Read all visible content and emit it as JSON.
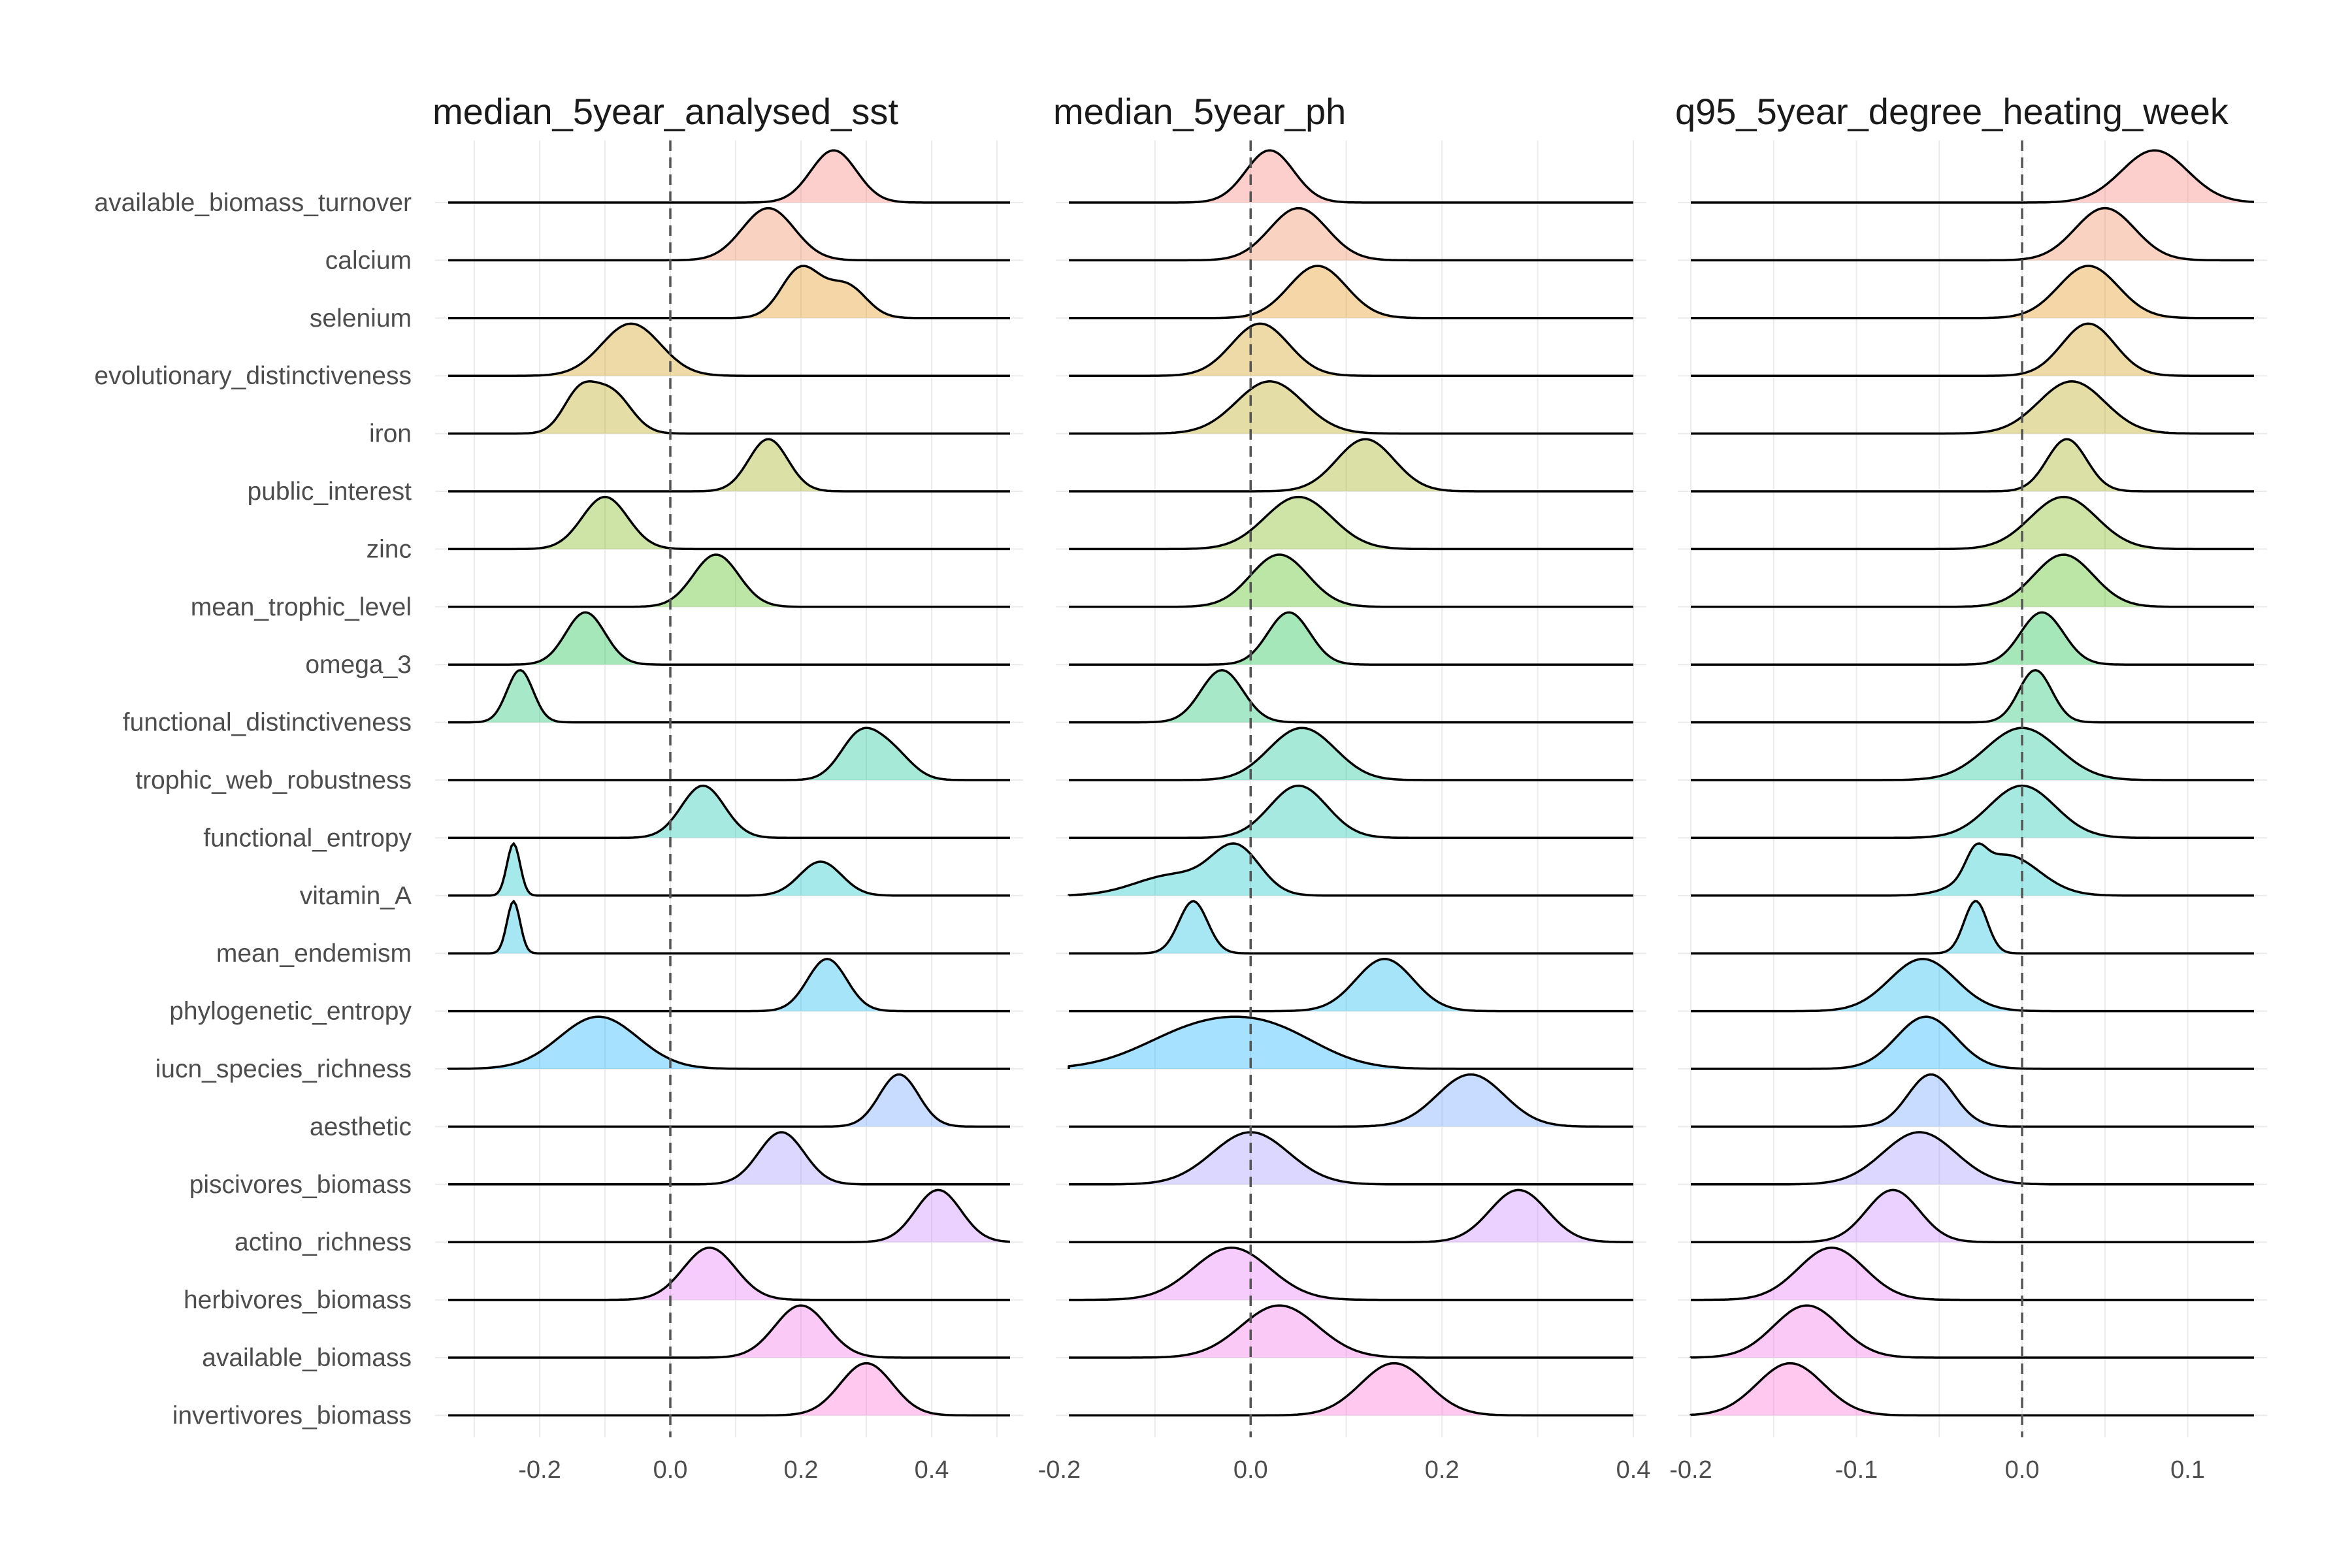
{
  "chart_data": {
    "type": "ridgeline",
    "rows": [
      "available_biomass_turnover",
      "calcium",
      "selenium",
      "evolutionary_distinctiveness",
      "iron",
      "public_interest",
      "zinc",
      "mean_trophic_level",
      "omega_3",
      "functional_distinctiveness",
      "trophic_web_robustness",
      "functional_entropy",
      "vitamin_A",
      "mean_endemism",
      "phylogenetic_entropy",
      "iucn_species_richness",
      "aesthetic",
      "piscivores_biomass",
      "actino_richness",
      "herbivores_biomass",
      "available_biomass",
      "invertivores_biomass"
    ],
    "row_colors": [
      "#F8766D",
      "#F17F4C",
      "#E28A00",
      "#CD9600",
      "#B49E00",
      "#97A600",
      "#72AF00",
      "#3EB600",
      "#00BA38",
      "#00BD5E",
      "#00C08B",
      "#00C1A9",
      "#00BFC4",
      "#00BADE",
      "#00B2F0",
      "#00A8FF",
      "#619CFF",
      "#9C8DFF",
      "#C77CFF",
      "#E26EF7",
      "#F365E6",
      "#FE61D0"
    ],
    "reference_line_x": 0,
    "panels": [
      {
        "title": "median_5year_analysed_sst",
        "xlim": [
          -0.34,
          0.52
        ],
        "ticks": [
          -0.2,
          0.0,
          0.2,
          0.4
        ],
        "tick_labels": [
          "-0.2",
          "0.0",
          "0.2",
          "0.4"
        ],
        "series": [
          {
            "name": "available_biomass_turnover",
            "peaks": [
              {
                "mu": 0.25,
                "sd": 0.035,
                "w": 1
              }
            ]
          },
          {
            "name": "calcium",
            "peaks": [
              {
                "mu": 0.15,
                "sd": 0.04,
                "w": 1
              }
            ]
          },
          {
            "name": "selenium",
            "peaks": [
              {
                "mu": 0.2,
                "sd": 0.03,
                "w": 0.7
              },
              {
                "mu": 0.27,
                "sd": 0.03,
                "w": 0.45
              }
            ]
          },
          {
            "name": "evolutionary_distinctiveness",
            "peaks": [
              {
                "mu": -0.06,
                "sd": 0.045,
                "w": 1
              }
            ]
          },
          {
            "name": "iron",
            "peaks": [
              {
                "mu": -0.14,
                "sd": 0.025,
                "w": 0.7
              },
              {
                "mu": -0.09,
                "sd": 0.03,
                "w": 0.75
              }
            ]
          },
          {
            "name": "public_interest",
            "peaks": [
              {
                "mu": 0.15,
                "sd": 0.03,
                "w": 1
              }
            ]
          },
          {
            "name": "zinc",
            "peaks": [
              {
                "mu": -0.1,
                "sd": 0.035,
                "w": 1
              }
            ]
          },
          {
            "name": "mean_trophic_level",
            "peaks": [
              {
                "mu": 0.07,
                "sd": 0.035,
                "w": 1
              }
            ]
          },
          {
            "name": "omega_3",
            "peaks": [
              {
                "mu": -0.13,
                "sd": 0.03,
                "w": 1
              }
            ]
          },
          {
            "name": "functional_distinctiveness",
            "peaks": [
              {
                "mu": -0.23,
                "sd": 0.02,
                "w": 1
              }
            ]
          },
          {
            "name": "trophic_web_robustness",
            "peaks": [
              {
                "mu": 0.29,
                "sd": 0.03,
                "w": 0.85
              },
              {
                "mu": 0.34,
                "sd": 0.03,
                "w": 0.5
              }
            ]
          },
          {
            "name": "functional_entropy",
            "peaks": [
              {
                "mu": 0.05,
                "sd": 0.033,
                "w": 1
              }
            ]
          },
          {
            "name": "vitamin_A",
            "peaks": [
              {
                "mu": -0.24,
                "sd": 0.01,
                "w": 1
              },
              {
                "mu": 0.23,
                "sd": 0.032,
                "w": 0.65
              }
            ]
          },
          {
            "name": "mean_endemism",
            "peaks": [
              {
                "mu": -0.24,
                "sd": 0.01,
                "w": 1
              }
            ]
          },
          {
            "name": "phylogenetic_entropy",
            "peaks": [
              {
                "mu": 0.24,
                "sd": 0.03,
                "w": 1
              }
            ]
          },
          {
            "name": "iucn_species_richness",
            "peaks": [
              {
                "mu": -0.11,
                "sd": 0.06,
                "w": 1
              }
            ]
          },
          {
            "name": "aesthetic",
            "peaks": [
              {
                "mu": 0.35,
                "sd": 0.03,
                "w": 1
              }
            ]
          },
          {
            "name": "piscivores_biomass",
            "peaks": [
              {
                "mu": 0.17,
                "sd": 0.035,
                "w": 1
              }
            ]
          },
          {
            "name": "actino_richness",
            "peaks": [
              {
                "mu": 0.41,
                "sd": 0.035,
                "w": 1
              }
            ]
          },
          {
            "name": "herbivores_biomass",
            "peaks": [
              {
                "mu": 0.06,
                "sd": 0.04,
                "w": 1
              }
            ]
          },
          {
            "name": "available_biomass",
            "peaks": [
              {
                "mu": 0.2,
                "sd": 0.04,
                "w": 1
              }
            ]
          },
          {
            "name": "invertivores_biomass",
            "peaks": [
              {
                "mu": 0.3,
                "sd": 0.04,
                "w": 1
              }
            ]
          }
        ]
      },
      {
        "title": "median_5year_ph",
        "xlim": [
          -0.19,
          0.4
        ],
        "ticks": [
          -0.2,
          0.0,
          0.2,
          0.4
        ],
        "tick_labels": [
          "-0.2",
          "0.0",
          "0.2",
          "0.4"
        ],
        "series": [
          {
            "name": "available_biomass_turnover",
            "peaks": [
              {
                "mu": 0.02,
                "sd": 0.025,
                "w": 1
              }
            ]
          },
          {
            "name": "calcium",
            "peaks": [
              {
                "mu": 0.05,
                "sd": 0.03,
                "w": 1
              }
            ]
          },
          {
            "name": "selenium",
            "peaks": [
              {
                "mu": 0.07,
                "sd": 0.03,
                "w": 1
              }
            ]
          },
          {
            "name": "evolutionary_distinctiveness",
            "peaks": [
              {
                "mu": 0.01,
                "sd": 0.03,
                "w": 1
              }
            ]
          },
          {
            "name": "iron",
            "peaks": [
              {
                "mu": 0.02,
                "sd": 0.035,
                "w": 1
              }
            ]
          },
          {
            "name": "public_interest",
            "peaks": [
              {
                "mu": 0.12,
                "sd": 0.03,
                "w": 1
              }
            ]
          },
          {
            "name": "zinc",
            "peaks": [
              {
                "mu": 0.05,
                "sd": 0.035,
                "w": 1
              }
            ]
          },
          {
            "name": "mean_trophic_level",
            "peaks": [
              {
                "mu": 0.03,
                "sd": 0.03,
                "w": 1
              }
            ]
          },
          {
            "name": "omega_3",
            "peaks": [
              {
                "mu": 0.04,
                "sd": 0.022,
                "w": 1
              }
            ]
          },
          {
            "name": "functional_distinctiveness",
            "peaks": [
              {
                "mu": -0.03,
                "sd": 0.022,
                "w": 1
              }
            ]
          },
          {
            "name": "trophic_web_robustness",
            "peaks": [
              {
                "mu": 0.04,
                "sd": 0.03,
                "w": 0.8
              },
              {
                "mu": 0.07,
                "sd": 0.03,
                "w": 0.7
              }
            ]
          },
          {
            "name": "functional_entropy",
            "peaks": [
              {
                "mu": 0.05,
                "sd": 0.03,
                "w": 1
              }
            ]
          },
          {
            "name": "vitamin_A",
            "peaks": [
              {
                "mu": -0.015,
                "sd": 0.025,
                "w": 0.9
              },
              {
                "mu": -0.08,
                "sd": 0.04,
                "w": 0.4
              }
            ]
          },
          {
            "name": "mean_endemism",
            "peaks": [
              {
                "mu": -0.06,
                "sd": 0.015,
                "w": 1
              }
            ]
          },
          {
            "name": "phylogenetic_entropy",
            "peaks": [
              {
                "mu": 0.14,
                "sd": 0.03,
                "w": 1
              }
            ]
          },
          {
            "name": "iucn_species_richness",
            "peaks": [
              {
                "mu": -0.05,
                "sd": 0.06,
                "w": 0.9
              },
              {
                "mu": 0.03,
                "sd": 0.05,
                "w": 0.6
              }
            ]
          },
          {
            "name": "aesthetic",
            "peaks": [
              {
                "mu": 0.23,
                "sd": 0.035,
                "w": 1
              }
            ]
          },
          {
            "name": "piscivores_biomass",
            "peaks": [
              {
                "mu": 0.0,
                "sd": 0.04,
                "w": 1
              }
            ]
          },
          {
            "name": "actino_richness",
            "peaks": [
              {
                "mu": 0.28,
                "sd": 0.03,
                "w": 1
              }
            ]
          },
          {
            "name": "herbivores_biomass",
            "peaks": [
              {
                "mu": -0.02,
                "sd": 0.04,
                "w": 1
              }
            ]
          },
          {
            "name": "available_biomass",
            "peaks": [
              {
                "mu": 0.03,
                "sd": 0.04,
                "w": 1
              }
            ]
          },
          {
            "name": "invertivores_biomass",
            "peaks": [
              {
                "mu": 0.15,
                "sd": 0.035,
                "w": 1
              }
            ]
          }
        ]
      },
      {
        "title": "q95_5year_degree_heating_week",
        "xlim": [
          -0.2,
          0.14
        ],
        "ticks": [
          -0.2,
          -0.1,
          0.0,
          0.1
        ],
        "tick_labels": [
          "-0.2",
          "-0.1",
          "0.0",
          "0.1"
        ],
        "series": [
          {
            "name": "available_biomass_turnover",
            "peaks": [
              {
                "mu": 0.08,
                "sd": 0.02,
                "w": 1
              }
            ]
          },
          {
            "name": "calcium",
            "peaks": [
              {
                "mu": 0.05,
                "sd": 0.018,
                "w": 1
              }
            ]
          },
          {
            "name": "selenium",
            "peaks": [
              {
                "mu": 0.04,
                "sd": 0.018,
                "w": 1
              }
            ]
          },
          {
            "name": "evolutionary_distinctiveness",
            "peaks": [
              {
                "mu": 0.04,
                "sd": 0.016,
                "w": 1
              }
            ]
          },
          {
            "name": "iron",
            "peaks": [
              {
                "mu": 0.03,
                "sd": 0.02,
                "w": 1
              }
            ]
          },
          {
            "name": "public_interest",
            "peaks": [
              {
                "mu": 0.027,
                "sd": 0.012,
                "w": 1
              }
            ]
          },
          {
            "name": "zinc",
            "peaks": [
              {
                "mu": 0.025,
                "sd": 0.02,
                "w": 1
              }
            ]
          },
          {
            "name": "mean_trophic_level",
            "peaks": [
              {
                "mu": 0.025,
                "sd": 0.018,
                "w": 1
              }
            ]
          },
          {
            "name": "omega_3",
            "peaks": [
              {
                "mu": 0.012,
                "sd": 0.013,
                "w": 1
              }
            ]
          },
          {
            "name": "functional_distinctiveness",
            "peaks": [
              {
                "mu": 0.008,
                "sd": 0.01,
                "w": 1
              }
            ]
          },
          {
            "name": "trophic_web_robustness",
            "peaks": [
              {
                "mu": 0.0,
                "sd": 0.022,
                "w": 1
              }
            ]
          },
          {
            "name": "functional_entropy",
            "peaks": [
              {
                "mu": 0.0,
                "sd": 0.02,
                "w": 1
              }
            ]
          },
          {
            "name": "vitamin_A",
            "peaks": [
              {
                "mu": -0.01,
                "sd": 0.02,
                "w": 0.85
              },
              {
                "mu": -0.028,
                "sd": 0.006,
                "w": 0.5
              }
            ]
          },
          {
            "name": "mean_endemism",
            "peaks": [
              {
                "mu": -0.028,
                "sd": 0.007,
                "w": 1
              }
            ]
          },
          {
            "name": "phylogenetic_entropy",
            "peaks": [
              {
                "mu": -0.06,
                "sd": 0.02,
                "w": 1
              }
            ]
          },
          {
            "name": "iucn_species_richness",
            "peaks": [
              {
                "mu": -0.058,
                "sd": 0.018,
                "w": 1
              }
            ]
          },
          {
            "name": "aesthetic",
            "peaks": [
              {
                "mu": -0.055,
                "sd": 0.014,
                "w": 1
              }
            ]
          },
          {
            "name": "piscivores_biomass",
            "peaks": [
              {
                "mu": -0.062,
                "sd": 0.022,
                "w": 1
              }
            ]
          },
          {
            "name": "actino_richness",
            "peaks": [
              {
                "mu": -0.078,
                "sd": 0.016,
                "w": 1
              }
            ]
          },
          {
            "name": "herbivores_biomass",
            "peaks": [
              {
                "mu": -0.115,
                "sd": 0.02,
                "w": 1
              }
            ]
          },
          {
            "name": "available_biomass",
            "peaks": [
              {
                "mu": -0.13,
                "sd": 0.02,
                "w": 1
              }
            ]
          },
          {
            "name": "invertivores_biomass",
            "peaks": [
              {
                "mu": -0.14,
                "sd": 0.02,
                "w": 1
              }
            ]
          }
        ]
      }
    ],
    "grid": true,
    "legend": "none"
  }
}
